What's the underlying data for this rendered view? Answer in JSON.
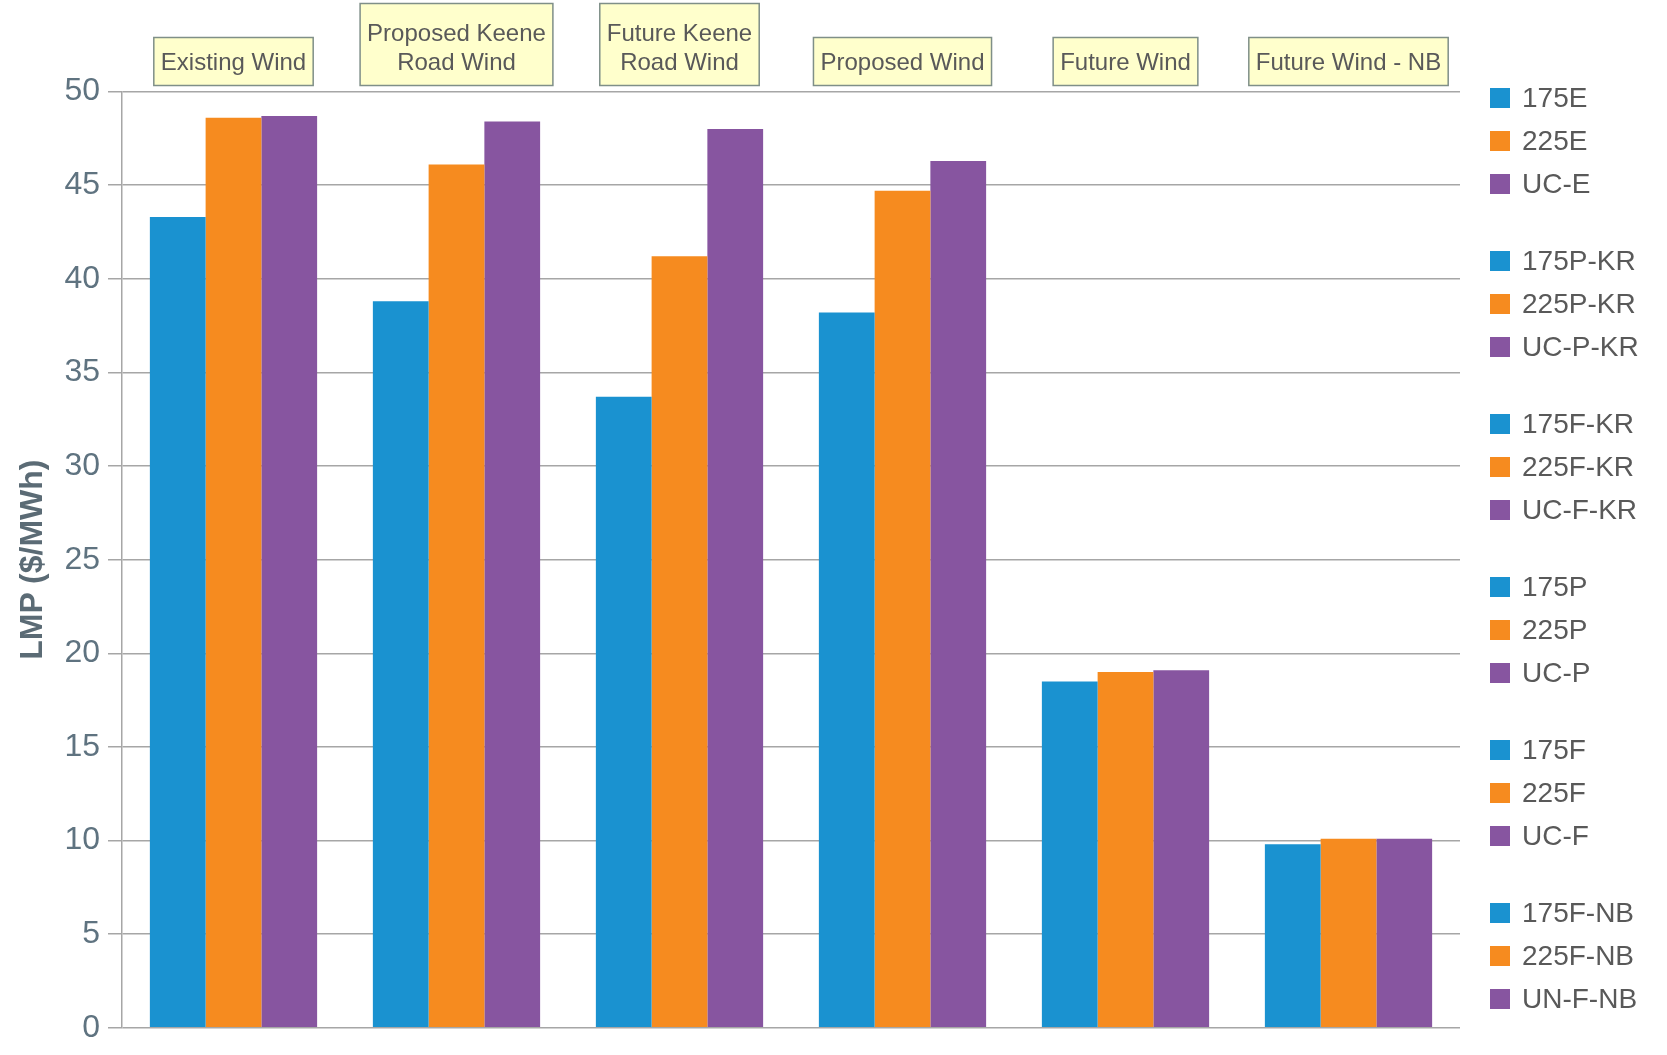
{
  "chart_data": {
    "type": "bar",
    "ylabel": "LMP ($/MWh)",
    "categories": [
      "Existing Wind",
      "Proposed Keene Road Wind",
      "Future Keene Road Wind",
      "Proposed Wind",
      "Future Wind",
      "Future Wind - NB"
    ],
    "ylim": [
      0,
      50
    ],
    "yticks": [
      0,
      5,
      10,
      15,
      20,
      25,
      30,
      35,
      40,
      45,
      50
    ],
    "grid": "y",
    "legend": "right",
    "series": [
      {
        "name": "175E",
        "color": "#1a92d0",
        "values": [
          43.3,
          null,
          null,
          null,
          null,
          null
        ]
      },
      {
        "name": "225E",
        "color": "#f68b1f",
        "values": [
          48.6,
          null,
          null,
          null,
          null,
          null
        ]
      },
      {
        "name": "UC-E",
        "color": "#8755a0",
        "values": [
          48.7,
          null,
          null,
          null,
          null,
          null
        ]
      },
      {
        "name": "175P-KR",
        "color": "#1a92d0",
        "values": [
          null,
          38.8,
          null,
          null,
          null,
          null
        ]
      },
      {
        "name": "225P-KR",
        "color": "#f68b1f",
        "values": [
          null,
          46.1,
          null,
          null,
          null,
          null
        ]
      },
      {
        "name": "UC-P-KR",
        "color": "#8755a0",
        "values": [
          null,
          48.4,
          null,
          null,
          null,
          null
        ]
      },
      {
        "name": "175F-KR",
        "color": "#1a92d0",
        "values": [
          null,
          null,
          33.7,
          null,
          null,
          null
        ]
      },
      {
        "name": "225F-KR",
        "color": "#f68b1f",
        "values": [
          null,
          null,
          41.2,
          null,
          null,
          null
        ]
      },
      {
        "name": "UC-F-KR",
        "color": "#8755a0",
        "values": [
          null,
          null,
          48.0,
          null,
          null,
          null
        ]
      },
      {
        "name": "175P",
        "color": "#1a92d0",
        "values": [
          null,
          null,
          null,
          38.2,
          null,
          null
        ]
      },
      {
        "name": "225P",
        "color": "#f68b1f",
        "values": [
          null,
          null,
          null,
          44.7,
          null,
          null
        ]
      },
      {
        "name": "UC-P",
        "color": "#8755a0",
        "values": [
          null,
          null,
          null,
          46.3,
          null,
          null
        ]
      },
      {
        "name": "175F",
        "color": "#1a92d0",
        "values": [
          null,
          null,
          null,
          null,
          18.5,
          null
        ]
      },
      {
        "name": "225F",
        "color": "#f68b1f",
        "values": [
          null,
          null,
          null,
          null,
          19.0,
          null
        ]
      },
      {
        "name": "UC-F",
        "color": "#8755a0",
        "values": [
          null,
          null,
          null,
          null,
          19.1,
          null
        ]
      },
      {
        "name": "175F-NB",
        "color": "#1a92d0",
        "values": [
          null,
          null,
          null,
          null,
          null,
          9.8
        ]
      },
      {
        "name": "225F-NB",
        "color": "#f68b1f",
        "values": [
          null,
          null,
          null,
          null,
          null,
          10.1
        ]
      },
      {
        "name": "UN-F-NB",
        "color": "#8755a0",
        "values": [
          null,
          null,
          null,
          null,
          null,
          10.1
        ]
      }
    ]
  }
}
